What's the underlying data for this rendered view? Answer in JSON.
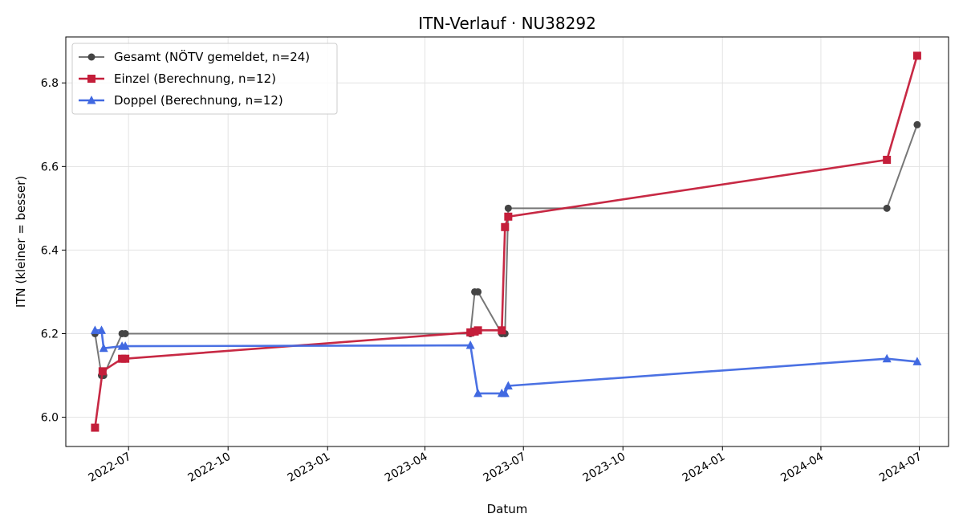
{
  "chart_data": {
    "type": "line",
    "title": "ITN-Verlauf · NU38292",
    "xlabel": "Datum",
    "ylabel": "ITN  (kleiner = besser)",
    "x_tick_labels": [
      "2022-07",
      "2022-10",
      "2023-01",
      "2023-04",
      "2023-07",
      "2023-10",
      "2024-01",
      "2024-04",
      "2024-07"
    ],
    "x_tick_dates": [
      "2022-07-01",
      "2022-10-01",
      "2023-01-01",
      "2023-04-01",
      "2023-07-01",
      "2023-10-01",
      "2024-01-01",
      "2024-04-01",
      "2024-07-01"
    ],
    "y_ticks": [
      6.0,
      6.2,
      6.4,
      6.6,
      6.8
    ],
    "y_tick_labels": [
      "6.0",
      "6.2",
      "6.4",
      "6.6",
      "6.8"
    ],
    "xlim": [
      "2022-05-04",
      "2024-07-28"
    ],
    "ylim": [
      5.93,
      6.91
    ],
    "grid": true,
    "legend_position": "top-left",
    "series": [
      {
        "name": "Gesamt (NÖTV gemeldet, n=24)",
        "color": "#777777",
        "marker_color": "#444444",
        "marker": "circle",
        "points": [
          {
            "x": "2022-05-31",
            "y": 6.2
          },
          {
            "x": "2022-06-06",
            "y": 6.1
          },
          {
            "x": "2022-06-08",
            "y": 6.1
          },
          {
            "x": "2022-06-25",
            "y": 6.2
          },
          {
            "x": "2022-06-28",
            "y": 6.2
          },
          {
            "x": "2023-05-13",
            "y": 6.2
          },
          {
            "x": "2023-05-17",
            "y": 6.3
          },
          {
            "x": "2023-05-20",
            "y": 6.3
          },
          {
            "x": "2023-06-11",
            "y": 6.2
          },
          {
            "x": "2023-06-14",
            "y": 6.2
          },
          {
            "x": "2023-06-17",
            "y": 6.5
          },
          {
            "x": "2024-06-01",
            "y": 6.5
          },
          {
            "x": "2024-06-29",
            "y": 6.7
          }
        ]
      },
      {
        "name": "Einzel (Berechnung, n=12)",
        "color": "#c41e3a",
        "marker": "square",
        "points": [
          {
            "x": "2022-05-31",
            "y": 5.975
          },
          {
            "x": "2022-06-07",
            "y": 6.11
          },
          {
            "x": "2022-06-25",
            "y": 6.14
          },
          {
            "x": "2022-06-28",
            "y": 6.14
          },
          {
            "x": "2023-05-13",
            "y": 6.203
          },
          {
            "x": "2023-05-17",
            "y": 6.205
          },
          {
            "x": "2023-05-20",
            "y": 6.208
          },
          {
            "x": "2023-06-11",
            "y": 6.208
          },
          {
            "x": "2023-06-14",
            "y": 6.455
          },
          {
            "x": "2023-06-17",
            "y": 6.48
          },
          {
            "x": "2024-06-01",
            "y": 6.616
          },
          {
            "x": "2024-06-29",
            "y": 6.865
          }
        ]
      },
      {
        "name": "Doppel (Berechnung, n=12)",
        "color": "#4169e1",
        "marker": "triangle",
        "points": [
          {
            "x": "2022-05-31",
            "y": 6.208
          },
          {
            "x": "2022-06-06",
            "y": 6.208
          },
          {
            "x": "2022-06-08",
            "y": 6.165
          },
          {
            "x": "2022-06-25",
            "y": 6.17
          },
          {
            "x": "2022-06-28",
            "y": 6.17
          },
          {
            "x": "2023-05-13",
            "y": 6.172
          },
          {
            "x": "2023-05-20",
            "y": 6.057
          },
          {
            "x": "2023-06-11",
            "y": 6.057
          },
          {
            "x": "2023-06-14",
            "y": 6.057
          },
          {
            "x": "2023-06-17",
            "y": 6.075
          },
          {
            "x": "2024-06-01",
            "y": 6.14
          },
          {
            "x": "2024-06-29",
            "y": 6.133
          }
        ]
      }
    ]
  }
}
